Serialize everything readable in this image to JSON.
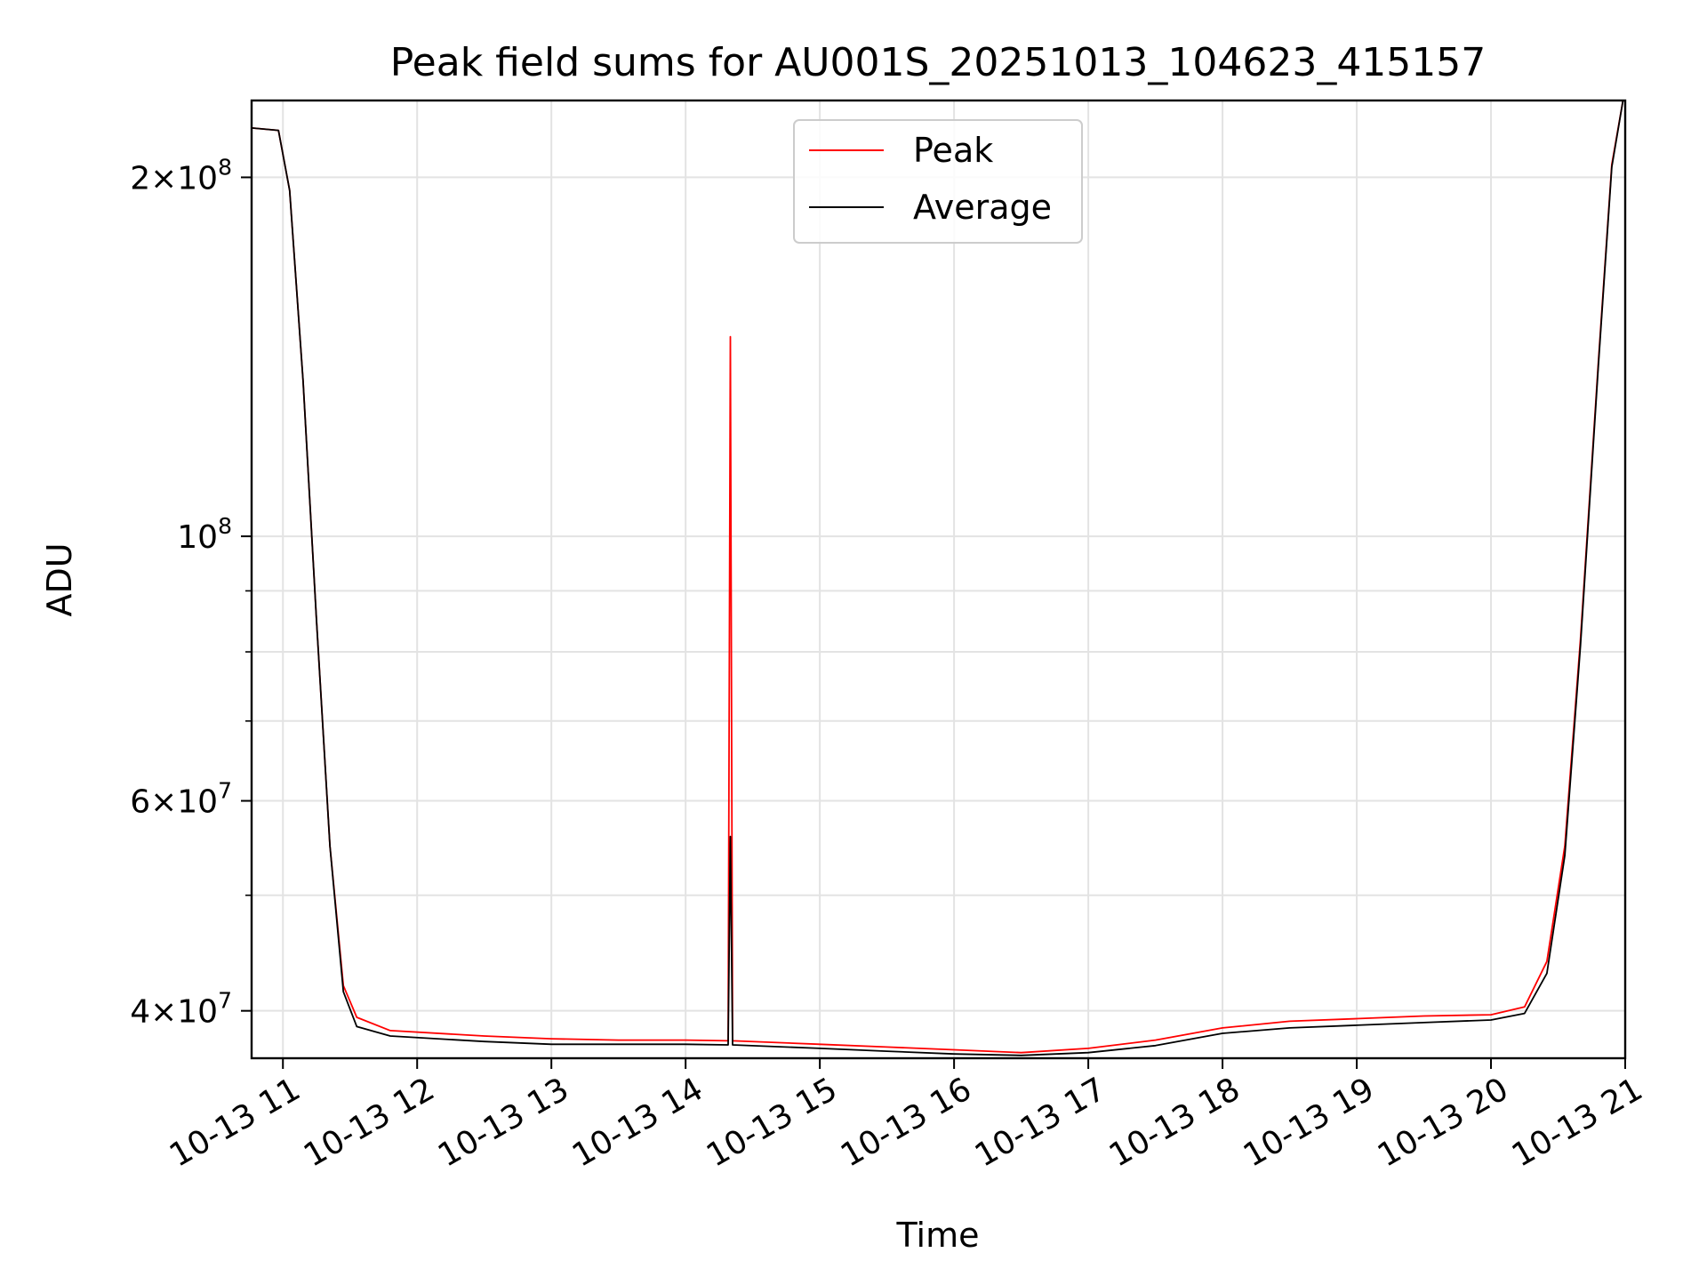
{
  "chart_data": {
    "type": "line",
    "title": "Peak field sums for AU001S_20251013_104623_415157",
    "xlabel": "Time",
    "ylabel": "ADU",
    "yscale": "log",
    "xlim": [
      "2025-10-13T10:46",
      "2025-10-13T21:00"
    ],
    "ylim": [
      36500000,
      232000000
    ],
    "grid": true,
    "legend_position": "upper center",
    "x_ticks": [
      {
        "t": "2025-10-13T11:00",
        "label": "10-13 11"
      },
      {
        "t": "2025-10-13T12:00",
        "label": "10-13 12"
      },
      {
        "t": "2025-10-13T13:00",
        "label": "10-13 13"
      },
      {
        "t": "2025-10-13T14:00",
        "label": "10-13 14"
      },
      {
        "t": "2025-10-13T15:00",
        "label": "10-13 15"
      },
      {
        "t": "2025-10-13T16:00",
        "label": "10-13 16"
      },
      {
        "t": "2025-10-13T17:00",
        "label": "10-13 17"
      },
      {
        "t": "2025-10-13T18:00",
        "label": "10-13 18"
      },
      {
        "t": "2025-10-13T19:00",
        "label": "10-13 19"
      },
      {
        "t": "2025-10-13T20:00",
        "label": "10-13 20"
      },
      {
        "t": "2025-10-13T21:00",
        "label": "10-13 21"
      }
    ],
    "y_major_ticks": [
      {
        "value": 40000000,
        "mantissa": "4",
        "exponent": "7"
      },
      {
        "value": 60000000,
        "mantissa": "6",
        "exponent": "7"
      },
      {
        "value": 100000000,
        "mantissa": "",
        "exponent": "8"
      },
      {
        "value": 200000000,
        "mantissa": "2",
        "exponent": "8"
      }
    ],
    "y_minor_grid": [
      50000000,
      70000000,
      80000000,
      90000000
    ],
    "series": [
      {
        "name": "Peak",
        "color": "#ff0000",
        "points": [
          [
            "2025-10-13T10:46",
            220000000
          ],
          [
            "2025-10-13T10:58",
            219000000
          ],
          [
            "2025-10-13T11:03",
            195000000
          ],
          [
            "2025-10-13T11:09",
            135000000
          ],
          [
            "2025-10-13T11:15",
            85000000
          ],
          [
            "2025-10-13T11:21",
            55000000
          ],
          [
            "2025-10-13T11:27",
            42000000
          ],
          [
            "2025-10-13T11:33",
            39500000
          ],
          [
            "2025-10-13T11:48",
            38500000
          ],
          [
            "2025-10-13T12:30",
            38100000
          ],
          [
            "2025-10-13T13:00",
            37900000
          ],
          [
            "2025-10-13T13:30",
            37800000
          ],
          [
            "2025-10-13T14:00",
            37800000
          ],
          [
            "2025-10-13T14:19",
            37750000
          ],
          [
            "2025-10-13T14:20",
            147000000
          ],
          [
            "2025-10-13T14:21",
            37750000
          ],
          [
            "2025-10-13T15:00",
            37500000
          ],
          [
            "2025-10-13T15:30",
            37300000
          ],
          [
            "2025-10-13T16:00",
            37100000
          ],
          [
            "2025-10-13T16:30",
            36900000
          ],
          [
            "2025-10-13T17:00",
            37200000
          ],
          [
            "2025-10-13T17:30",
            37800000
          ],
          [
            "2025-10-13T18:00",
            38700000
          ],
          [
            "2025-10-13T18:30",
            39200000
          ],
          [
            "2025-10-13T19:00",
            39400000
          ],
          [
            "2025-10-13T19:30",
            39600000
          ],
          [
            "2025-10-13T20:00",
            39700000
          ],
          [
            "2025-10-13T20:15",
            40300000
          ],
          [
            "2025-10-13T20:25",
            44000000
          ],
          [
            "2025-10-13T20:33",
            55000000
          ],
          [
            "2025-10-13T20:40",
            82000000
          ],
          [
            "2025-10-13T20:48",
            140000000
          ],
          [
            "2025-10-13T20:54",
            205000000
          ],
          [
            "2025-10-13T20:59",
            232000000
          ]
        ]
      },
      {
        "name": "Average",
        "color": "#000000",
        "points": [
          [
            "2025-10-13T10:46",
            220000000
          ],
          [
            "2025-10-13T10:58",
            219000000
          ],
          [
            "2025-10-13T11:03",
            195000000
          ],
          [
            "2025-10-13T11:09",
            135000000
          ],
          [
            "2025-10-13T11:15",
            85000000
          ],
          [
            "2025-10-13T11:21",
            55000000
          ],
          [
            "2025-10-13T11:27",
            41500000
          ],
          [
            "2025-10-13T11:33",
            38800000
          ],
          [
            "2025-10-13T11:48",
            38100000
          ],
          [
            "2025-10-13T12:30",
            37700000
          ],
          [
            "2025-10-13T13:00",
            37500000
          ],
          [
            "2025-10-13T13:30",
            37500000
          ],
          [
            "2025-10-13T14:00",
            37500000
          ],
          [
            "2025-10-13T14:19",
            37450000
          ],
          [
            "2025-10-13T14:20",
            56000000
          ],
          [
            "2025-10-13T14:21",
            37450000
          ],
          [
            "2025-10-13T15:00",
            37200000
          ],
          [
            "2025-10-13T15:30",
            37000000
          ],
          [
            "2025-10-13T16:00",
            36800000
          ],
          [
            "2025-10-13T16:30",
            36700000
          ],
          [
            "2025-10-13T17:00",
            36900000
          ],
          [
            "2025-10-13T17:30",
            37400000
          ],
          [
            "2025-10-13T18:00",
            38300000
          ],
          [
            "2025-10-13T18:30",
            38700000
          ],
          [
            "2025-10-13T19:00",
            38900000
          ],
          [
            "2025-10-13T19:30",
            39100000
          ],
          [
            "2025-10-13T20:00",
            39300000
          ],
          [
            "2025-10-13T20:15",
            39800000
          ],
          [
            "2025-10-13T20:25",
            43000000
          ],
          [
            "2025-10-13T20:33",
            54000000
          ],
          [
            "2025-10-13T20:40",
            81000000
          ],
          [
            "2025-10-13T20:48",
            139000000
          ],
          [
            "2025-10-13T20:54",
            204000000
          ],
          [
            "2025-10-13T20:59",
            232000000
          ]
        ]
      }
    ]
  }
}
